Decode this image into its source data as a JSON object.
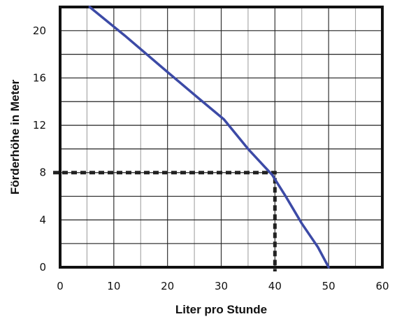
{
  "chart_data": {
    "type": "line",
    "title": "",
    "xlabel": "Liter pro Stunde",
    "ylabel": "Förderhöhe in Meter",
    "xlim": [
      0,
      60
    ],
    "ylim": [
      0,
      22
    ],
    "x_ticks": [
      0,
      10,
      20,
      30,
      40,
      50,
      60
    ],
    "y_ticks": [
      0,
      4,
      8,
      12,
      16,
      20
    ],
    "grid": true,
    "series": [
      {
        "name": "",
        "color": "#3c4aa6",
        "x": [
          5.5,
          12,
          20,
          26,
          30.5,
          35,
          39.5,
          42,
          45,
          48,
          50
        ],
        "y": [
          22,
          19.6,
          16.5,
          14.2,
          12.5,
          10,
          7.8,
          6,
          3.7,
          1.7,
          0
        ]
      }
    ],
    "annotations": [
      {
        "type": "operating-point",
        "x": 40,
        "y": 8,
        "style": "dashed",
        "color": "#222222"
      }
    ]
  }
}
